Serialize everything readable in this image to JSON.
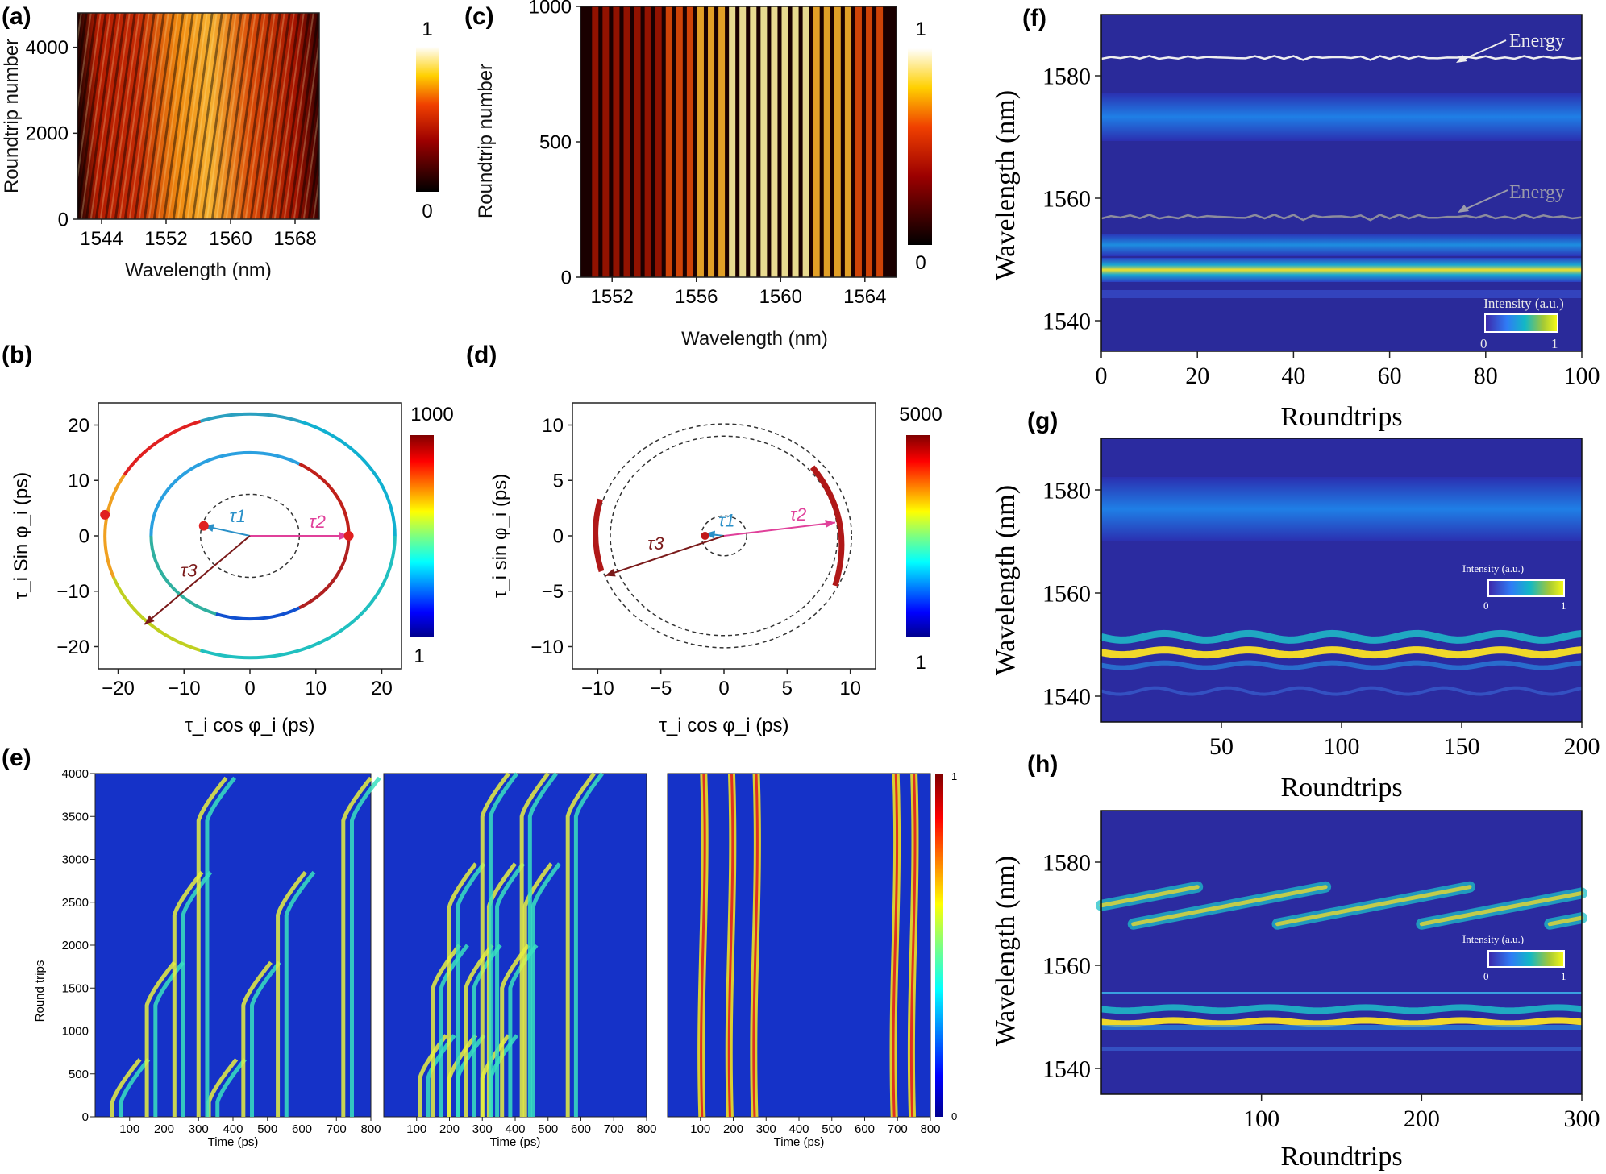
{
  "colors": {
    "hot_dark": "#000000",
    "hot_mid": "#e23a08",
    "hot_light": "#ffffd0",
    "jet_bg": "#1a1fa6",
    "text": "#111111"
  },
  "chart_data": [
    {
      "panel": "(a)",
      "type": "heatmap",
      "colormap": "hot",
      "xlabel": "Wavelength (nm)",
      "ylabel": "Roundtrip number",
      "xticks": [
        "1544",
        "1552",
        "1560",
        "1568"
      ],
      "yticks": [
        "0",
        "2000",
        "4000"
      ],
      "xlim": [
        1541,
        1571
      ],
      "ylim": [
        0,
        4800
      ],
      "colorbar": {
        "max": "1",
        "min": "0"
      }
    },
    {
      "panel": "(c)",
      "type": "heatmap",
      "colormap": "hot",
      "xlabel": "Wavelength (nm)",
      "ylabel": "Roundtrip number",
      "xticks": [
        "1552",
        "1556",
        "1560",
        "1564"
      ],
      "yticks": [
        "0",
        "500",
        "1000"
      ],
      "xlim": [
        1550.5,
        1565.5
      ],
      "ylim": [
        0,
        1000
      ],
      "colorbar": {
        "max": "1",
        "min": "0"
      }
    },
    {
      "panel": "(b)",
      "type": "scatter",
      "xlabel": "τ_i cos φ_i (ps)",
      "ylabel": "τ_i Sin φ_i (ps)",
      "xticks": [
        "−20",
        "−10",
        "0",
        "10",
        "20"
      ],
      "yticks": [
        "−20",
        "−10",
        "0",
        "10",
        "20"
      ],
      "xlim": [
        -23,
        23
      ],
      "ylim": [
        -24,
        24
      ],
      "circles_radius_ps": [
        7.5,
        15,
        22
      ],
      "vectors": [
        {
          "name": "τ1",
          "x": -7,
          "y": 1.8
        },
        {
          "name": "τ2",
          "x": 15,
          "y": 0
        },
        {
          "name": "τ3",
          "x": -16,
          "y": -16
        }
      ],
      "colorbar": {
        "max": "1000",
        "min": "1"
      }
    },
    {
      "panel": "(d)",
      "type": "scatter",
      "xlabel": "τ_i cos φ_i (ps)",
      "ylabel": "τ_i sin φ_i (ps)",
      "xticks": [
        "−10",
        "−5",
        "0",
        "5",
        "10"
      ],
      "yticks": [
        "−10",
        "−5",
        "0",
        "5",
        "10"
      ],
      "xlim": [
        -12,
        12
      ],
      "ylim": [
        -12,
        12
      ],
      "circles_radius_ps": [
        1.8,
        9,
        10.1
      ],
      "vectors": [
        {
          "name": "τ1",
          "x": -1.5,
          "y": 0.2
        },
        {
          "name": "τ2",
          "x": 8.8,
          "y": 1.2
        },
        {
          "name": "τ3",
          "x": -9.4,
          "y": -3.6
        }
      ],
      "colorbar": {
        "max": "5000",
        "min": "1"
      }
    },
    {
      "panel": "(e)",
      "type": "heatmap",
      "colormap": "jet",
      "xlabel": "Time (ps)",
      "ylabel": "Round trips",
      "xticks": [
        "100",
        "200",
        "300",
        "400",
        "500",
        "600",
        "700",
        "800"
      ],
      "yticks": [
        "0",
        "500",
        "1000",
        "1500",
        "2000",
        "2500",
        "3000",
        "3500",
        "4000"
      ],
      "xlim": [
        0,
        800
      ],
      "ylim": [
        0,
        4000
      ],
      "colorbar": {
        "max": "1",
        "min": "0"
      }
    },
    {
      "panel": "(f)",
      "type": "heatmap",
      "colormap": "parula",
      "xlabel": "Roundtrips",
      "ylabel": "Wavelength (nm)",
      "xticks": [
        "0",
        "20",
        "40",
        "60",
        "80",
        "100"
      ],
      "yticks": [
        "1540",
        "1560",
        "1580"
      ],
      "xlim": [
        0,
        100
      ],
      "ylim": [
        1535,
        1590
      ],
      "bands_nm": [
        1548,
        1552,
        1573
      ],
      "overlay_lines": [
        {
          "label": "Energy",
          "level_nm": 1583
        },
        {
          "label": "Energy",
          "level_nm": 1557
        }
      ],
      "colorbar": {
        "label": "Intensity (a.u.)",
        "min": "0",
        "max": "1"
      }
    },
    {
      "panel": "(g)",
      "type": "heatmap",
      "colormap": "parula",
      "xlabel": "Roundtrips",
      "ylabel": "Wavelength (nm)",
      "xticks": [
        "50",
        "100",
        "150",
        "200"
      ],
      "yticks": [
        "1540",
        "1560",
        "1580"
      ],
      "xlim": [
        0,
        200
      ],
      "ylim": [
        1535,
        1590
      ],
      "bands_nm": [
        1548,
        1551,
        1574
      ],
      "colorbar": {
        "label": "Intensity (a.u.)",
        "min": "0",
        "max": "1"
      }
    },
    {
      "panel": "(h)",
      "type": "heatmap",
      "colormap": "parula",
      "xlabel": "Roundtrips",
      "ylabel": "Wavelength (nm)",
      "xticks": [
        "100",
        "200",
        "300"
      ],
      "yticks": [
        "1540",
        "1560",
        "1580"
      ],
      "xlim": [
        0,
        300
      ],
      "ylim": [
        1535,
        1590
      ],
      "bands_nm": [
        1549,
        1551,
        1571
      ],
      "colorbar": {
        "label": "Intensity (a.u.)",
        "min": "0",
        "max": "1"
      }
    }
  ]
}
